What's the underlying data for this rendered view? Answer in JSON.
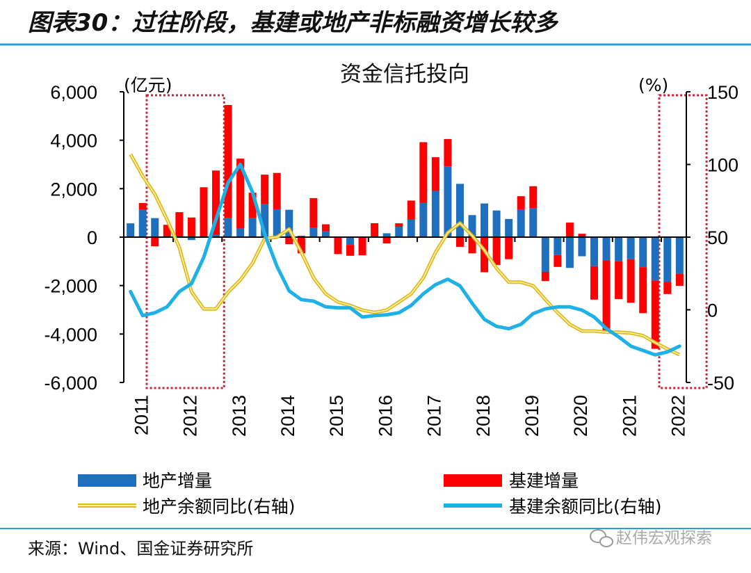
{
  "header": {
    "title": "图表30：过往阶段，基建或地产非标融资增长较多"
  },
  "footer": {
    "source": "来源：Wind、国金证券研究所",
    "watermark": "赵伟宏观探索"
  },
  "colors": {
    "realestate_bar": "#1f6fbf",
    "infra_bar": "#ff0000",
    "realestate_line": "#f2d43a",
    "infra_line": "#1fb0e6",
    "rule": "#2aa0d8",
    "highlight_box": "#c0283a"
  },
  "chart_data": {
    "type": "bar",
    "title": "资金信托投向",
    "ylabel": "(亿元)",
    "y2label": "(%)",
    "ylim": [
      -6000,
      6000
    ],
    "y2lim": [
      -50,
      150
    ],
    "yticks": [
      "6,000",
      "4,000",
      "2,000",
      "0",
      "-2,000",
      "-4,000",
      "-6,000"
    ],
    "y2ticks": [
      "150",
      "100",
      "50",
      "0",
      "-50"
    ],
    "xticks": [
      "2011",
      "2012",
      "2013",
      "2014",
      "2015",
      "2016",
      "2017",
      "2018",
      "2019",
      "2020",
      "2021",
      "2022"
    ],
    "periods": "quarterly 2011Q1-2022Q2",
    "highlight_ranges": [
      [
        "2011Q3",
        "2012Q4"
      ],
      [
        "2022Q1",
        "2022Q2"
      ]
    ],
    "series": [
      {
        "name": "地产增量",
        "kind": "bar",
        "axis": "left",
        "values": [
          570,
          1130,
          785,
          0,
          0,
          -120,
          0,
          100,
          785,
          360,
          785,
          1360,
          1150,
          1130,
          60,
          380,
          240,
          0,
          -320,
          0,
          0,
          160,
          430,
          720,
          1410,
          1910,
          2920,
          2200,
          910,
          1390,
          1100,
          750,
          1150,
          1200,
          -1435,
          -740,
          -1270,
          -790,
          -1200,
          -960,
          -1000,
          -910,
          -1240,
          -1790,
          -1850,
          -1510
        ]
      },
      {
        "name": "基建增量",
        "kind": "bar",
        "axis": "left",
        "values": [
          0,
          280,
          -380,
          510,
          1030,
          810,
          2060,
          2650,
          4670,
          2880,
          1050,
          1220,
          1500,
          -290,
          -670,
          1230,
          290,
          -700,
          -450,
          -750,
          575,
          -260,
          140,
          790,
          2510,
          1390,
          1130,
          -400,
          -670,
          -1450,
          -1150,
          -910,
          540,
          900,
          -380,
          -490,
          600,
          140,
          -1380,
          -2960,
          -1560,
          -1800,
          -1900,
          -2820,
          -500,
          -500
        ]
      },
      {
        "name": "地产余额同比(右轴)",
        "kind": "line",
        "axis": "right",
        "values": [
          107,
          92,
          79.5,
          62,
          43,
          12.5,
          0.6,
          0.6,
          12,
          20.5,
          32,
          49,
          50,
          55.6,
          39.6,
          22,
          11,
          5.3,
          3,
          -0.2,
          -1.8,
          -0.2,
          5.3,
          11,
          22,
          39.6,
          53,
          59.6,
          51,
          41,
          28.5,
          19,
          19,
          16.5,
          7,
          -2,
          -10,
          -14.6,
          -14.6,
          -15.4,
          -15.4,
          -16,
          -17.8,
          -22.6,
          -27,
          -31
        ]
      },
      {
        "name": "基建余额同比(右轴)",
        "kind": "line",
        "axis": "right",
        "values": [
          12.5,
          -4,
          -2,
          2,
          12.5,
          18,
          36,
          62,
          87.5,
          100,
          81,
          52,
          30,
          13,
          7,
          6,
          2,
          1.4,
          1.4,
          -5,
          -4,
          -3.4,
          -2,
          3,
          11,
          17.3,
          21,
          16.5,
          4.5,
          -6.6,
          -11.4,
          -13,
          -10,
          -2.6,
          0.6,
          2,
          2,
          -0.2,
          -5,
          -13,
          -18.6,
          -25,
          -28,
          -31,
          -29,
          -25
        ]
      }
    ],
    "legend": [
      "地产增量",
      "基建增量",
      "地产余额同比(右轴)",
      "基建余额同比(右轴)"
    ],
    "legend_position": "bottom"
  }
}
